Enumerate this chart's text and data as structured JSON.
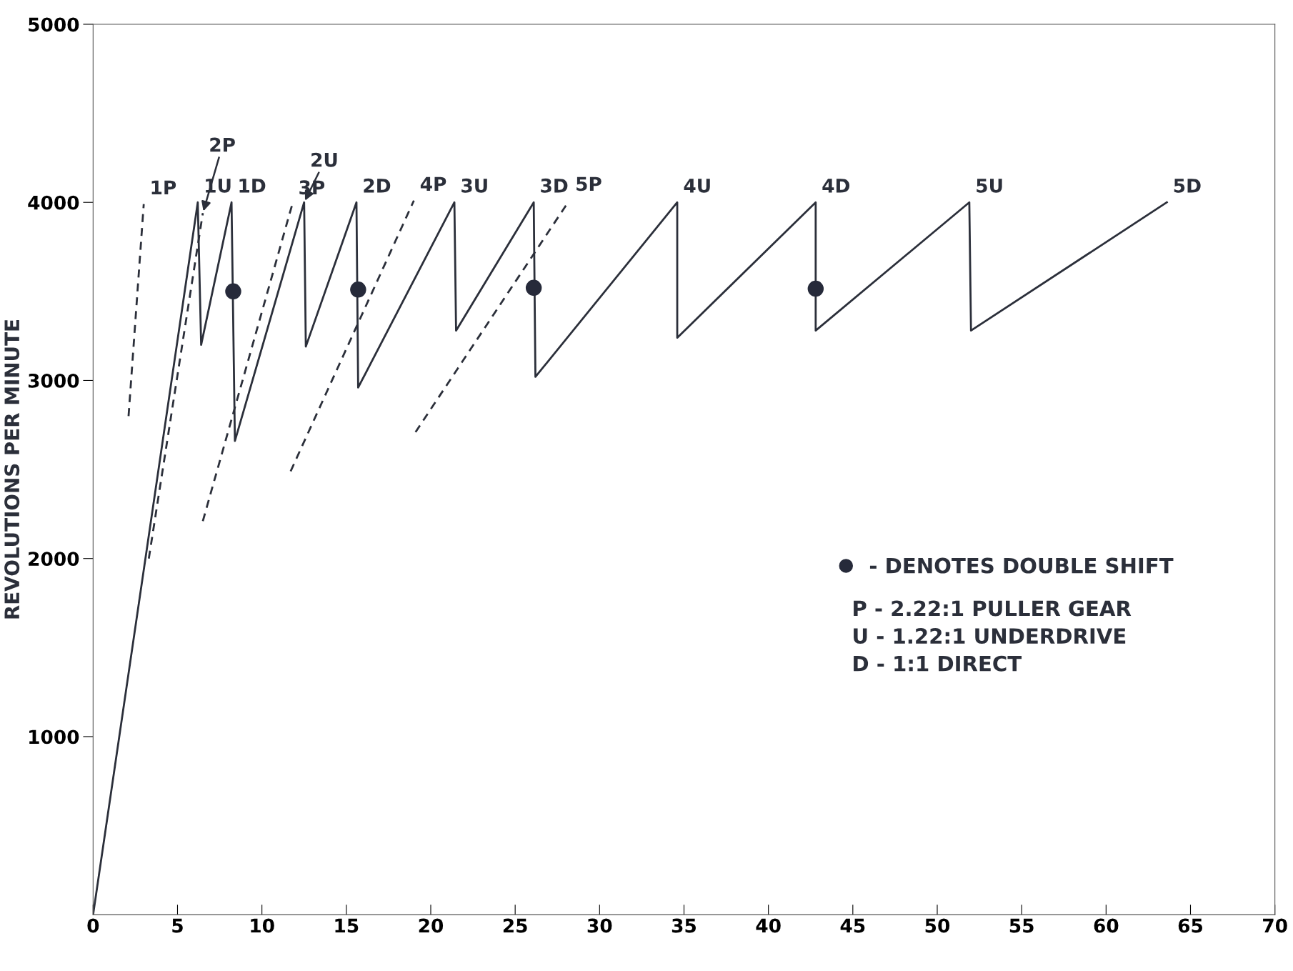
{
  "chart_data": {
    "type": "line",
    "ylabel": "REVOLUTIONS PER MINUTE",
    "xlim": [
      0,
      70
    ],
    "xticks": [
      0,
      5,
      10,
      15,
      20,
      25,
      30,
      35,
      40,
      45,
      50,
      55,
      60,
      65,
      70
    ],
    "ylim": [
      0,
      5000
    ],
    "yticks": [
      1000,
      2000,
      3000,
      4000,
      5000
    ],
    "grid": false,
    "legend": "right",
    "series": [
      {
        "line_style": "solid",
        "color": "#2b2f3a",
        "x": [
          0,
          6.2,
          6.4,
          8.2,
          8.4,
          12.5,
          12.6,
          15.6,
          15.7,
          21.4,
          21.5,
          26.1,
          26.2,
          34.6,
          34.6,
          42.8,
          42.8,
          51.9,
          52.0,
          63.6
        ],
        "values": [
          0,
          4000,
          3200,
          4000,
          2660,
          4000,
          3190,
          4000,
          2960,
          4000,
          3280,
          4000,
          3020,
          4000,
          3240,
          4000,
          3280,
          4000,
          3280,
          4000
        ]
      },
      {
        "line_style": "dashed",
        "color": "#2b2f3a",
        "x": [
          2.1,
          3.0
        ],
        "values": [
          2800,
          3990
        ]
      },
      {
        "line_style": "dashed",
        "color": "#2b2f3a",
        "x": [
          3.3,
          6.5
        ],
        "values": [
          2000,
          3940
        ]
      },
      {
        "line_style": "dashed",
        "color": "#2b2f3a",
        "x": [
          6.5,
          11.8
        ],
        "values": [
          2210,
          3990
        ]
      },
      {
        "line_style": "dashed",
        "color": "#2b2f3a",
        "x": [
          11.7,
          19.0
        ],
        "values": [
          2490,
          4010
        ]
      },
      {
        "line_style": "dashed",
        "color": "#2b2f3a",
        "x": [
          19.1,
          28.2
        ],
        "values": [
          2710,
          4010
        ]
      },
      {
        "type": "scatter",
        "name": "- DENOTES DOUBLE SHIFT",
        "marker": "circle",
        "color": "#262a3a",
        "x": [
          8.3,
          15.7,
          26.1,
          42.8
        ],
        "values": [
          3500,
          3510,
          3520,
          3515
        ]
      }
    ],
    "annotations": [
      {
        "text": "1P",
        "x": 3.0,
        "y": 3990
      },
      {
        "text": "1U",
        "x": 6.2,
        "y": 4000
      },
      {
        "text": "2P",
        "x": 6.5,
        "y": 3940
      },
      {
        "text": "1D",
        "x": 8.2,
        "y": 4000
      },
      {
        "text": "3P",
        "x": 11.8,
        "y": 3990
      },
      {
        "text": "2U",
        "x": 12.5,
        "y": 4000
      },
      {
        "text": "2D",
        "x": 15.6,
        "y": 4000
      },
      {
        "text": "4P",
        "x": 19.0,
        "y": 4010
      },
      {
        "text": "3U",
        "x": 21.4,
        "y": 4000
      },
      {
        "text": "3D",
        "x": 26.1,
        "y": 4000
      },
      {
        "text": "5P",
        "x": 28.2,
        "y": 4010
      },
      {
        "text": "4U",
        "x": 34.6,
        "y": 4000
      },
      {
        "text": "4D",
        "x": 42.8,
        "y": 4000
      },
      {
        "text": "5U",
        "x": 51.9,
        "y": 4000
      },
      {
        "text": "5D",
        "x": 63.6,
        "y": 4000
      },
      "P - 2.22:1 PULLER GEAR",
      "U - 1.22:1 UNDERDRIVE",
      "D - 1:1 DIRECT"
    ]
  }
}
